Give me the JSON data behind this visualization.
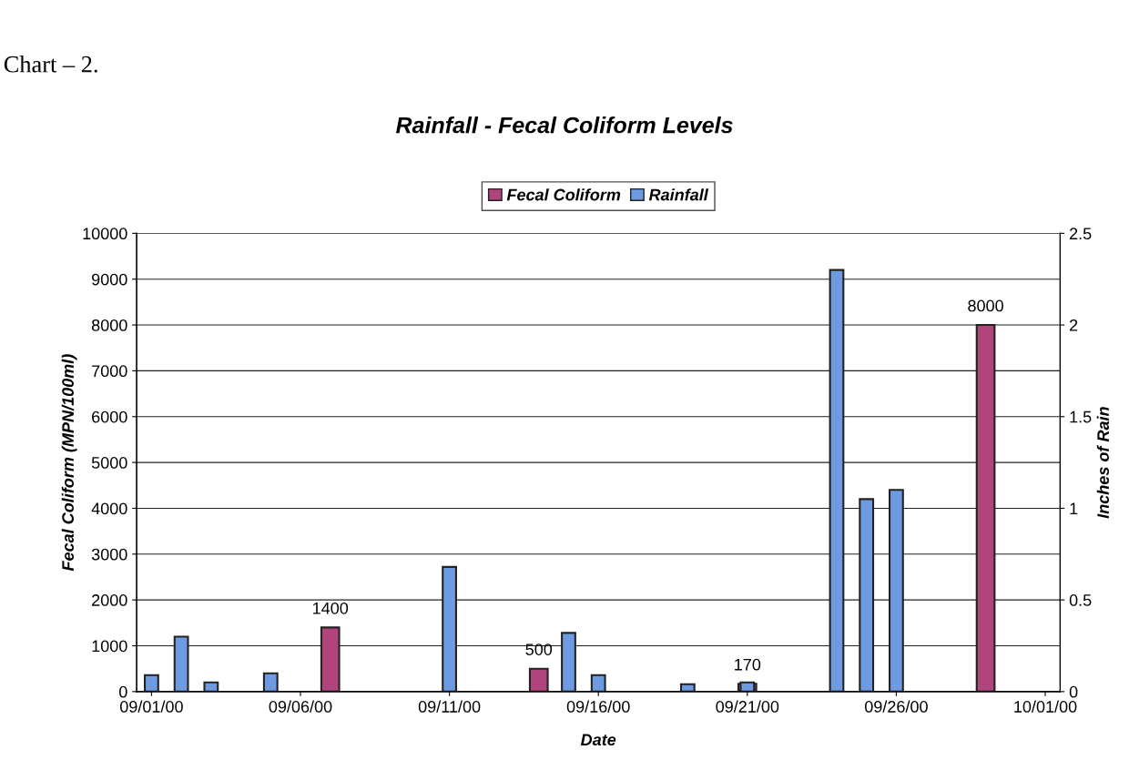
{
  "chart_data": {
    "type": "bar",
    "title": "Rainfall - Fecal Coliform Levels",
    "xlabel": "Date",
    "ylabel": "Fecal Coliform (MPN/100ml)",
    "y2label": "Inches of Rain",
    "annotations": [
      "Chart – 2."
    ],
    "series": [
      {
        "name": "Fecal Coliform",
        "color": "#b0457e",
        "x": [
          "2000-09-07",
          "2000-09-14",
          "2000-09-21",
          "2000-09-29"
        ],
        "values": [
          1400,
          500,
          170,
          8000
        ],
        "value_labels": [
          "1400",
          "500",
          "170",
          "8000"
        ]
      },
      {
        "name": "Rainfall",
        "color": "#6d9ae0",
        "axis": "y2",
        "x": [
          "2000-09-01",
          "2000-09-02",
          "2000-09-03",
          "2000-09-05",
          "2000-09-11",
          "2000-09-15",
          "2000-09-16",
          "2000-09-19",
          "2000-09-21",
          "2000-09-24",
          "2000-09-25",
          "2000-09-26"
        ],
        "values": [
          0.09,
          0.3,
          0.05,
          0.1,
          0.68,
          0.32,
          0.09,
          0.04,
          0.05,
          2.3,
          1.05,
          1.1
        ]
      }
    ],
    "xlim": [
      "2000-08-31T12:00",
      "2000-10-01T12:00"
    ],
    "xticks": [
      {
        "value": "2000-09-01",
        "label": "09/01/00"
      },
      {
        "value": "2000-09-06",
        "label": "09/06/00"
      },
      {
        "value": "2000-09-11",
        "label": "09/11/00"
      },
      {
        "value": "2000-09-16",
        "label": "09/16/00"
      },
      {
        "value": "2000-09-21",
        "label": "09/21/00"
      },
      {
        "value": "2000-09-26",
        "label": "09/26/00"
      },
      {
        "value": "2000-10-01",
        "label": "10/01/00"
      }
    ],
    "ylim": [
      0,
      10000
    ],
    "yticks": [
      0,
      1000,
      2000,
      3000,
      4000,
      5000,
      6000,
      7000,
      8000,
      9000,
      10000
    ],
    "y2lim": [
      0,
      2.5
    ],
    "y2ticks": [
      0,
      0.5,
      1,
      1.5,
      2,
      2.5
    ],
    "grid": "y",
    "legend": "top"
  }
}
